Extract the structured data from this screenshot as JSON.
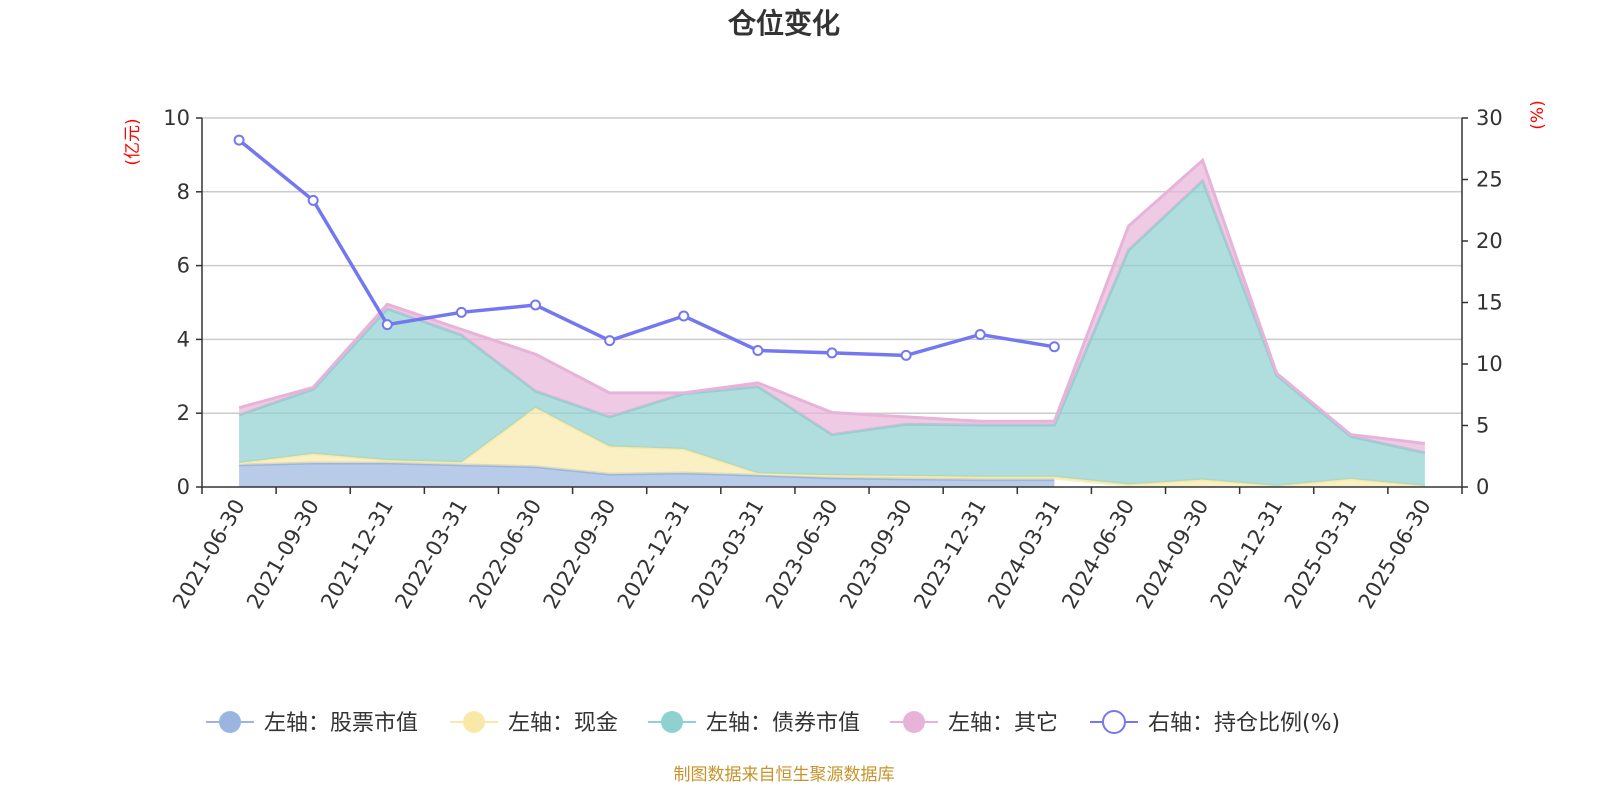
{
  "chart_data": {
    "type": "area",
    "title": "仓位变化",
    "source_note": "制图数据来自恒生聚源数据库",
    "left_axis": {
      "unit": "(亿元)",
      "ylim": [
        0,
        10
      ],
      "ticks": [
        "0",
        "2",
        "4",
        "6",
        "8",
        "10"
      ]
    },
    "right_axis": {
      "unit": "(%)",
      "ylim": [
        0,
        30
      ],
      "ticks": [
        "0",
        "5",
        "10",
        "15",
        "20",
        "25",
        "30"
      ]
    },
    "categories": [
      "2021-06-30",
      "2021-09-30",
      "2021-12-31",
      "2022-03-31",
      "2022-06-30",
      "2022-09-30",
      "2022-12-31",
      "2023-03-31",
      "2023-06-30",
      "2023-09-30",
      "2023-12-31",
      "2024-03-31",
      "2024-06-30",
      "2024-09-30",
      "2024-12-31",
      "2025-03-31",
      "2025-06-30"
    ],
    "grid": true,
    "legend_position": "bottom",
    "series": [
      {
        "name": "左轴：股票市值",
        "axis": "left",
        "stacked": true,
        "color": "#9ab6e0",
        "values": [
          0.6,
          0.65,
          0.65,
          0.6,
          0.55,
          0.35,
          0.38,
          0.32,
          0.25,
          0.22,
          0.2,
          0.2,
          0,
          0,
          0,
          0,
          0
        ]
      },
      {
        "name": "左轴：现金",
        "axis": "left",
        "stacked": true,
        "color": "#f9e9a9",
        "values": [
          0.05,
          0.25,
          0.08,
          0.07,
          1.6,
          0.75,
          0.65,
          0.05,
          0.07,
          0.08,
          0.08,
          0.08,
          0.07,
          0.2,
          0.03,
          0.22,
          0.03
        ]
      },
      {
        "name": "左轴：债券市值",
        "axis": "left",
        "stacked": true,
        "color": "#8fd0d0",
        "values": [
          1.3,
          1.75,
          4.1,
          3.45,
          0.45,
          0.8,
          1.5,
          2.35,
          1.1,
          1.4,
          1.4,
          1.4,
          6.35,
          8.1,
          3.0,
          1.15,
          0.9
        ]
      },
      {
        "name": "左轴：其它",
        "axis": "left",
        "stacked": true,
        "color": "#e8b3d8",
        "values": [
          0.2,
          0.05,
          0.12,
          0.15,
          1.0,
          0.65,
          0.02,
          0.1,
          0.6,
          0.2,
          0.1,
          0.1,
          0.65,
          0.55,
          0.05,
          0.05,
          0.25
        ]
      },
      {
        "name": "右轴：持仓比例(%)",
        "axis": "right",
        "type": "line",
        "color": "#7478f0",
        "values": [
          28.2,
          23.3,
          13.2,
          14.2,
          14.8,
          11.9,
          13.9,
          11.1,
          10.9,
          10.7,
          12.4,
          11.4,
          null,
          null,
          null,
          null,
          null
        ]
      }
    ]
  }
}
